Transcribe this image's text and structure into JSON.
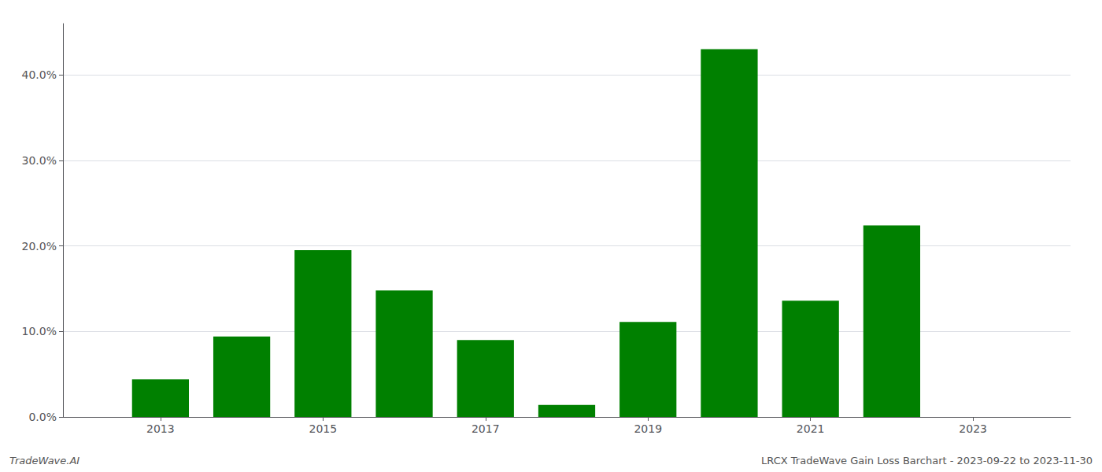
{
  "chart_data": {
    "type": "bar",
    "x": [
      2013,
      2014,
      2015,
      2016,
      2017,
      2018,
      2019,
      2020,
      2021,
      2022
    ],
    "values": [
      0.044,
      0.094,
      0.195,
      0.148,
      0.09,
      0.014,
      0.111,
      0.43,
      0.136,
      0.224
    ],
    "color": "#008000",
    "xlim": [
      2011.8,
      2024.2
    ],
    "xticks": [
      2013,
      2015,
      2017,
      2019,
      2021,
      2023
    ],
    "ylim": [
      0,
      0.46
    ],
    "yticks": [
      {
        "value": 0.0,
        "label": "0.0%"
      },
      {
        "value": 0.1,
        "label": "10.0%"
      },
      {
        "value": 0.2,
        "label": "20.0%"
      },
      {
        "value": 0.3,
        "label": "30.0%"
      },
      {
        "value": 0.4,
        "label": "40.0%"
      }
    ],
    "grid": "y",
    "annotations": [
      "TradeWave.AI",
      "LRCX TradeWave Gain Loss Barchart - 2023-09-22 to 2023-11-30"
    ]
  }
}
